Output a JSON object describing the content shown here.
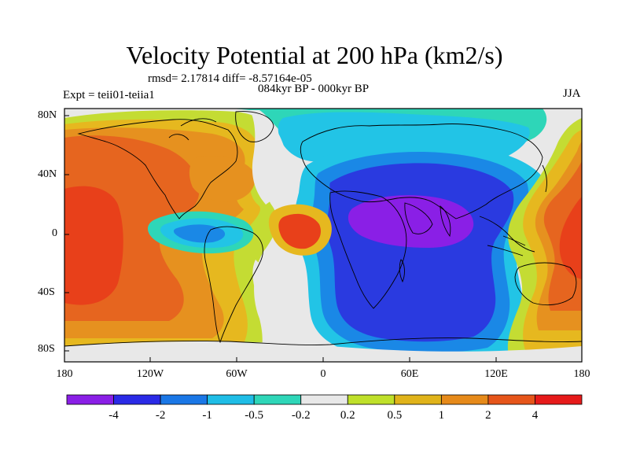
{
  "title": "Velocity Potential at 200 hPa (km2/s)",
  "stats": "rmsd= 2.17814 diff= -8.57164e-05",
  "subtitle": "084kyr BP - 000kyr BP",
  "expt": "Expt = teii01-teiia1",
  "season": "JJA",
  "lat_labels": [
    "80N",
    "40N",
    "0",
    "40S",
    "80S"
  ],
  "lon_labels": [
    "180",
    "120W",
    "60W",
    "0",
    "60E",
    "120E",
    "180"
  ],
  "colorbar": {
    "colors": [
      "#8a1fe6",
      "#2a2ae6",
      "#1a77e6",
      "#1fbde6",
      "#2ed6b8",
      "#e8e8e8",
      "#bfe02a",
      "#e0b31a",
      "#e68a1a",
      "#e6551a",
      "#e61a1a"
    ],
    "labels": [
      "-4",
      "-2",
      "-1",
      "-0.5",
      "-0.2",
      "0.2",
      "0.5",
      "1",
      "2",
      "4"
    ]
  },
  "palette": {
    "red": "#e8401a",
    "orange_red": "#e6651f",
    "orange": "#e6911f",
    "gold": "#e6b81f",
    "yellow_green": "#c4dc33",
    "white": "#e8e8e8",
    "teal": "#2ed6b8",
    "cyan": "#22c4e6",
    "blue_mid": "#1a88e6",
    "blue": "#2a3ae0",
    "purple": "#8a1fe6"
  }
}
